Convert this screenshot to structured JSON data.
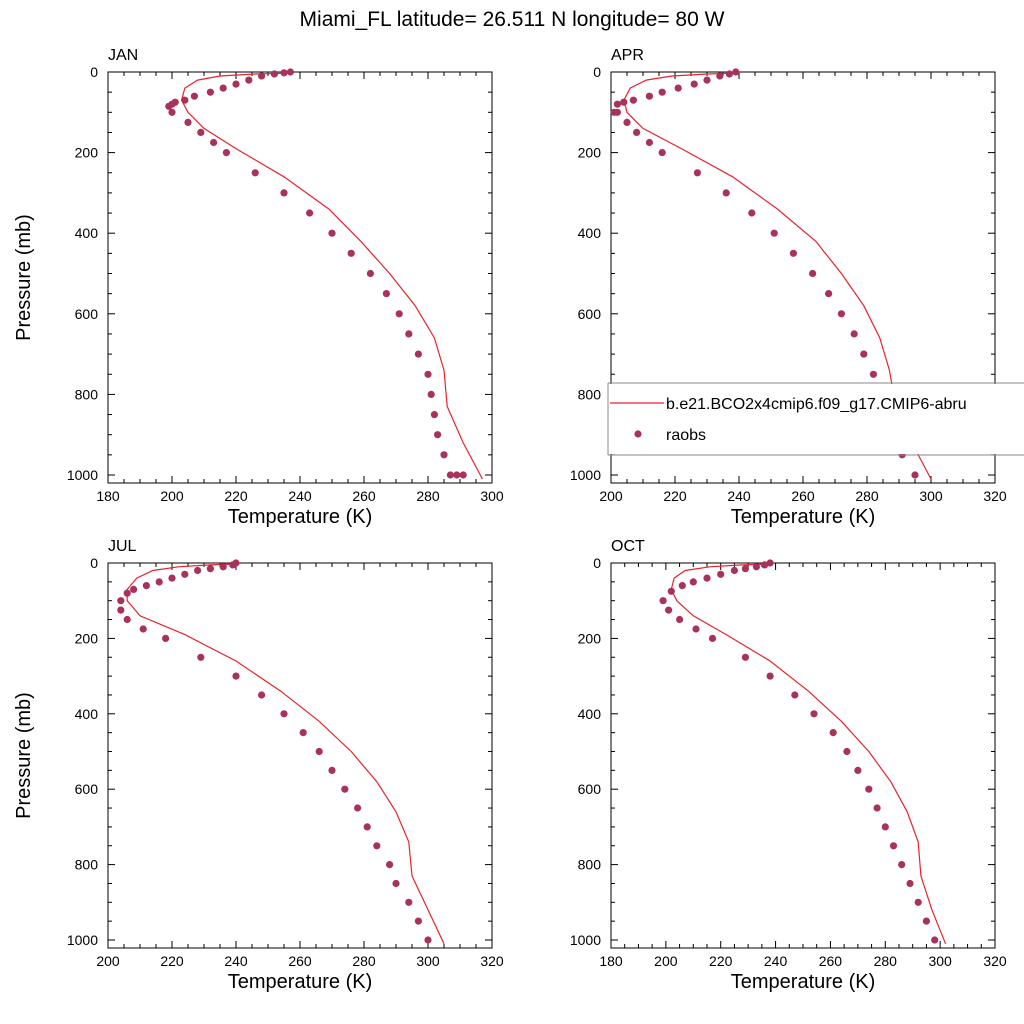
{
  "title": "Miami_FL  latitude= 26.511 N longitude= 80 W",
  "colors": {
    "model_line": "#e8222a",
    "obs_marker": "#a8325a",
    "axis": "#000000",
    "legend_border": "#888888"
  },
  "legend": {
    "model_label": "b.e21.BCO2x4cmip6.f09_g17.CMIP6-abru",
    "obs_label": "raobs"
  },
  "chart_data": [
    {
      "type": "line",
      "panel": "JAN",
      "title": "JAN",
      "xlabel": "Temperature (K)",
      "ylabel": "Pressure (mb)",
      "xlim": [
        180,
        300
      ],
      "ylim": [
        1025,
        0
      ],
      "xticks": [
        180,
        200,
        220,
        240,
        260,
        280,
        300
      ],
      "yticks": [
        0,
        200,
        400,
        600,
        800,
        1000
      ],
      "series": [
        {
          "name": "b.e21.BCO2x4cmip6.f09_g17.CMIP6-abru",
          "kind": "line",
          "x": [
            236,
            226,
            215,
            208,
            204,
            203,
            205,
            210,
            220,
            235,
            249,
            259,
            268,
            276,
            282,
            285,
            286,
            291,
            297
          ],
          "y": [
            3,
            5,
            10,
            20,
            40,
            70,
            100,
            140,
            190,
            260,
            340,
            420,
            500,
            580,
            660,
            740,
            830,
            920,
            1010
          ]
        },
        {
          "name": "raobs",
          "kind": "scatter",
          "x": [
            237,
            235,
            232,
            228,
            224,
            220,
            216,
            212,
            207,
            204,
            201,
            200,
            199,
            200,
            205,
            209,
            213,
            217,
            226,
            235,
            243,
            250,
            256,
            262,
            267,
            271,
            274,
            277,
            280,
            281,
            282,
            283,
            285,
            287,
            289,
            291
          ],
          "y": [
            0,
            2,
            5,
            10,
            20,
            30,
            40,
            50,
            60,
            70,
            75,
            80,
            85,
            100,
            125,
            150,
            175,
            200,
            250,
            300,
            350,
            400,
            450,
            500,
            550,
            600,
            650,
            700,
            750,
            800,
            850,
            900,
            950,
            1000,
            1000,
            1000
          ]
        }
      ]
    },
    {
      "type": "line",
      "panel": "APR",
      "title": "APR",
      "xlabel": "Temperature (K)",
      "ylabel": "",
      "xlim": [
        200,
        320
      ],
      "ylim": [
        1025,
        0
      ],
      "xticks": [
        200,
        220,
        240,
        260,
        280,
        300,
        320
      ],
      "yticks": [
        0,
        200,
        400,
        600,
        800,
        1000
      ],
      "series": [
        {
          "name": "b.e21.BCO2x4cmip6.f09_g17.CMIP6-abru",
          "kind": "line",
          "x": [
            238,
            230,
            219,
            211,
            206,
            204,
            205,
            210,
            222,
            238,
            252,
            264,
            272,
            279,
            284,
            287,
            289,
            294,
            300
          ],
          "y": [
            3,
            5,
            10,
            20,
            40,
            70,
            100,
            140,
            190,
            260,
            340,
            420,
            500,
            580,
            660,
            740,
            830,
            920,
            1010
          ]
        },
        {
          "name": "raobs",
          "kind": "scatter",
          "x": [
            239,
            237,
            234,
            230,
            226,
            221,
            216,
            212,
            207,
            204,
            202,
            201,
            202,
            205,
            208,
            212,
            216,
            227,
            236,
            244,
            251,
            257,
            263,
            268,
            272,
            276,
            279,
            282,
            284,
            286,
            288,
            291,
            295
          ],
          "y": [
            0,
            5,
            10,
            20,
            30,
            40,
            50,
            60,
            70,
            75,
            80,
            100,
            100,
            125,
            150,
            175,
            200,
            250,
            300,
            350,
            400,
            450,
            500,
            550,
            600,
            650,
            700,
            750,
            800,
            850,
            900,
            950,
            1000
          ]
        }
      ]
    },
    {
      "type": "line",
      "panel": "JUL",
      "title": "JUL",
      "xlabel": "Temperature (K)",
      "ylabel": "Pressure (mb)",
      "xlim": [
        200,
        320
      ],
      "ylim": [
        1025,
        0
      ],
      "xticks": [
        200,
        220,
        240,
        260,
        280,
        300,
        320
      ],
      "yticks": [
        0,
        200,
        400,
        600,
        800,
        1000
      ],
      "series": [
        {
          "name": "b.e21.BCO2x4cmip6.f09_g17.CMIP6-abru",
          "kind": "line",
          "x": [
            239,
            232,
            222,
            214,
            209,
            206,
            206,
            210,
            224,
            240,
            254,
            266,
            276,
            284,
            290,
            294,
            295,
            300,
            305
          ],
          "y": [
            3,
            5,
            10,
            20,
            40,
            70,
            100,
            140,
            190,
            260,
            340,
            420,
            500,
            580,
            660,
            740,
            830,
            920,
            1010
          ]
        },
        {
          "name": "raobs",
          "kind": "scatter",
          "x": [
            240,
            239,
            236,
            232,
            228,
            224,
            220,
            216,
            212,
            208,
            206,
            204,
            204,
            206,
            211,
            218,
            229,
            240,
            248,
            255,
            261,
            266,
            270,
            274,
            278,
            281,
            284,
            288,
            290,
            294,
            297,
            300
          ],
          "y": [
            0,
            5,
            10,
            15,
            20,
            30,
            40,
            50,
            60,
            70,
            80,
            100,
            125,
            150,
            175,
            200,
            250,
            300,
            350,
            400,
            450,
            500,
            550,
            600,
            650,
            700,
            750,
            800,
            850,
            900,
            950,
            1000
          ]
        }
      ]
    },
    {
      "type": "line",
      "panel": "OCT",
      "title": "OCT",
      "xlabel": "Temperature (K)",
      "ylabel": "",
      "xlim": [
        180,
        320
      ],
      "ylim": [
        1025,
        0
      ],
      "xticks": [
        180,
        200,
        220,
        240,
        260,
        280,
        300,
        320
      ],
      "yticks": [
        0,
        200,
        400,
        600,
        800,
        1000
      ],
      "series": [
        {
          "name": "b.e21.BCO2x4cmip6.f09_g17.CMIP6-abru",
          "kind": "line",
          "x": [
            237,
            228,
            216,
            207,
            203,
            202,
            204,
            210,
            222,
            238,
            252,
            264,
            274,
            282,
            288,
            292,
            293,
            297,
            302
          ],
          "y": [
            3,
            5,
            10,
            20,
            40,
            70,
            100,
            140,
            190,
            260,
            340,
            420,
            500,
            580,
            660,
            740,
            830,
            920,
            1010
          ]
        },
        {
          "name": "raobs",
          "kind": "scatter",
          "x": [
            238,
            236,
            233,
            229,
            225,
            220,
            215,
            210,
            206,
            202,
            199,
            201,
            205,
            211,
            217,
            229,
            238,
            247,
            254,
            261,
            266,
            270,
            274,
            277,
            280,
            283,
            286,
            289,
            292,
            295,
            298
          ],
          "y": [
            0,
            5,
            10,
            15,
            20,
            30,
            40,
            50,
            60,
            75,
            100,
            125,
            150,
            175,
            200,
            250,
            300,
            350,
            400,
            450,
            500,
            550,
            600,
            650,
            700,
            750,
            800,
            850,
            900,
            950,
            1000
          ]
        }
      ]
    }
  ]
}
